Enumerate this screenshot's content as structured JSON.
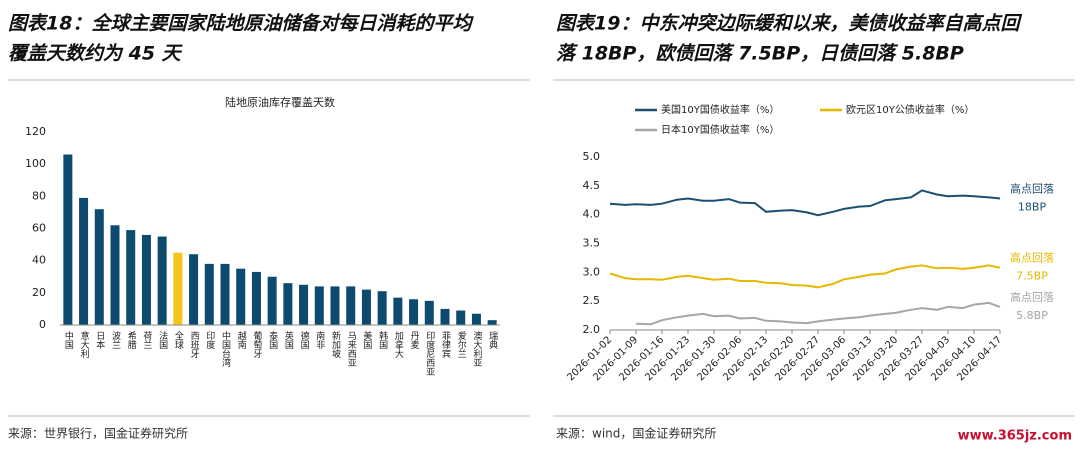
{
  "chart_data": [
    {
      "type": "bar",
      "heading": [
        "图表18：全球主要国家陆地原油储备对每日消耗的平均",
        "覆盖天数约为 45 天"
      ],
      "title": "陆地原油库存覆盖天数",
      "categories": [
        "中国",
        "意大利",
        "日本",
        "波兰",
        "希腊",
        "荷兰",
        "法国",
        "全球",
        "西班牙",
        "印度",
        "中国台湾",
        "越南",
        "葡萄牙",
        "泰国",
        "英国",
        "德国",
        "南非",
        "新加坡",
        "马来西亚",
        "美国",
        "韩国",
        "加拿大",
        "丹麦",
        "印度尼西亚",
        "菲律宾",
        "爱尔兰",
        "澳大利亚",
        "瑞典"
      ],
      "values": [
        106,
        79,
        72,
        62,
        59,
        56,
        55,
        45,
        44,
        38,
        38,
        35,
        33,
        30,
        26,
        25,
        24,
        24,
        24,
        22,
        21,
        17,
        16,
        15,
        10,
        9,
        7,
        3
      ],
      "colors": [
        "#0c4a6e",
        "#0c4a6e",
        "#0c4a6e",
        "#0c4a6e",
        "#0c4a6e",
        "#0c4a6e",
        "#0c4a6e",
        "#f5c518",
        "#0c4a6e",
        "#0c4a6e",
        "#0c4a6e",
        "#0c4a6e",
        "#0c4a6e",
        "#0c4a6e",
        "#0c4a6e",
        "#0c4a6e",
        "#0c4a6e",
        "#0c4a6e",
        "#0c4a6e",
        "#0c4a6e",
        "#0c4a6e",
        "#0c4a6e",
        "#0c4a6e",
        "#0c4a6e",
        "#0c4a6e",
        "#0c4a6e",
        "#0c4a6e",
        "#0c4a6e"
      ],
      "ylim": [
        0,
        120
      ],
      "yticks": [
        0,
        20,
        40,
        60,
        80,
        100,
        120
      ],
      "source": "来源：世界银行，国金证券研究所"
    },
    {
      "type": "line",
      "heading": [
        "图表19：中东冲突边际缓和以来，美债收益率自高点回",
        "落 18BP，欧债回落 7.5BP，日债回落 5.8BP"
      ],
      "x": [
        "2026-01-02",
        "2026-01-06",
        "2026-01-09",
        "2026-01-13",
        "2026-01-16",
        "2026-01-20",
        "2026-01-23",
        "2026-01-27",
        "2026-01-30",
        "2026-02-03",
        "2026-02-06",
        "2026-02-10",
        "2026-02-13",
        "2026-02-17",
        "2026-02-20",
        "2026-02-24",
        "2026-02-27",
        "2026-03-03",
        "2026-03-06",
        "2026-03-10",
        "2026-03-13",
        "2026-03-17",
        "2026-03-20",
        "2026-03-24",
        "2026-03-27",
        "2026-03-31",
        "2026-04-03",
        "2026-04-07",
        "2026-04-10",
        "2026-04-14",
        "2026-04-17"
      ],
      "xlim": [
        "2026-01-02",
        "2026-04-17"
      ],
      "xticks": [
        "2026-01-02",
        "2026-01-09",
        "2026-01-16",
        "2026-01-23",
        "2026-01-30",
        "2026-02-06",
        "2026-02-13",
        "2026-02-20",
        "2026-02-27",
        "2026-03-06",
        "2026-03-13",
        "2026-03-20",
        "2026-03-27",
        "2026-04-03",
        "2026-04-10",
        "2026-04-17"
      ],
      "ylim": [
        2.0,
        5.0
      ],
      "yticks": [
        {
          "value": 2,
          "label": "2.0"
        },
        {
          "value": 2.5,
          "label": "2.5"
        },
        {
          "value": 3,
          "label": "3.0"
        },
        {
          "value": 3.5,
          "label": "3.5"
        },
        {
          "value": 4,
          "label": "4.0"
        },
        {
          "value": 4.5,
          "label": "4.5"
        },
        {
          "value": 5,
          "label": "5.0"
        }
      ],
      "series": [
        {
          "name": "美国10Y国债收益率（%）",
          "color": "#1b4f72",
          "annotation": [
            "高点回落",
            "18BP"
          ],
          "values": [
            4.19,
            4.17,
            4.18,
            4.17,
            4.19,
            4.26,
            4.28,
            4.24,
            4.24,
            4.27,
            4.21,
            4.2,
            4.05,
            4.07,
            4.08,
            4.04,
            3.99,
            4.05,
            4.1,
            4.14,
            4.15,
            4.25,
            4.27,
            4.3,
            4.42,
            4.35,
            4.32,
            4.33,
            4.32,
            4.3,
            4.28
          ]
        },
        {
          "name": "欧元区10Y公债收益率（%）",
          "color": "#e6b800",
          "annotation": [
            "高点回落",
            "7.5BP"
          ],
          "values": [
            2.98,
            2.9,
            2.88,
            2.88,
            2.87,
            2.92,
            2.94,
            2.9,
            2.87,
            2.89,
            2.85,
            2.85,
            2.82,
            2.81,
            2.78,
            2.77,
            2.74,
            2.8,
            2.88,
            2.92,
            2.96,
            2.98,
            3.05,
            3.1,
            3.12,
            3.07,
            3.08,
            3.06,
            3.08,
            3.12,
            3.08
          ]
        },
        {
          "name": "日本10Y国债收益率（%）",
          "color": "#a6a6a6",
          "annotation": [
            "高点回落",
            "5.8BP"
          ],
          "values": [
            null,
            null,
            2.11,
            2.1,
            2.17,
            2.22,
            2.25,
            2.28,
            2.24,
            2.25,
            2.2,
            2.21,
            2.16,
            2.15,
            2.13,
            2.12,
            2.15,
            2.18,
            2.2,
            2.22,
            2.25,
            2.28,
            2.3,
            2.35,
            2.38,
            2.35,
            2.4,
            2.38,
            2.44,
            2.47,
            2.4
          ]
        }
      ],
      "source": "来源：wind，国金证券研究所"
    }
  ],
  "watermark": "www.365jz.com"
}
